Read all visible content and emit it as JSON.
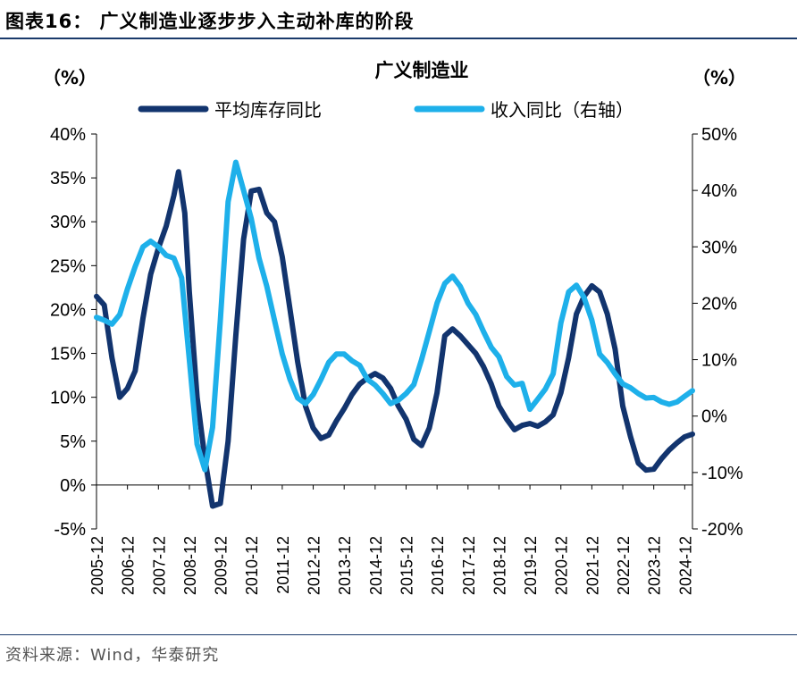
{
  "figure": {
    "title": "图表16：  广义制造业逐步步入主动补库的阶段",
    "source": "资料来源：Wind，华泰研究"
  },
  "chart_data": {
    "type": "line",
    "title": "广义制造业",
    "ylabel_left": "（%）",
    "ylabel_right": "（%）",
    "ylim_left": [
      -5,
      40
    ],
    "ylim_right": [
      -20,
      50
    ],
    "yticks_left": [
      "-5%",
      "0%",
      "5%",
      "10%",
      "15%",
      "20%",
      "25%",
      "30%",
      "35%",
      "40%"
    ],
    "yticks_right": [
      "-20%",
      "-10%",
      "0%",
      "10%",
      "20%",
      "30%",
      "40%",
      "50%"
    ],
    "x_categories": [
      "2005-12",
      "2006-12",
      "2007-12",
      "2008-12",
      "2009-12",
      "2010-12",
      "2011-12",
      "2012-12",
      "2013-12",
      "2014-12",
      "2015-12",
      "2016-12",
      "2017-12",
      "2018-12",
      "2019-12",
      "2020-12",
      "2021-12",
      "2022-12",
      "2023-12",
      "2024-12"
    ],
    "x_range": [
      2005.95,
      2025.2
    ],
    "colors": {
      "inventory": "#12346e",
      "revenue": "#1eb0ea"
    },
    "series": [
      {
        "name": "平均库存同比",
        "axis": "left",
        "x": [
          2005.95,
          2006.2,
          2006.45,
          2006.7,
          2006.95,
          2007.2,
          2007.45,
          2007.7,
          2007.95,
          2008.2,
          2008.45,
          2008.6,
          2008.8,
          2008.95,
          2009.2,
          2009.45,
          2009.7,
          2009.95,
          2010.2,
          2010.45,
          2010.7,
          2010.95,
          2011.2,
          2011.45,
          2011.7,
          2011.95,
          2012.2,
          2012.45,
          2012.7,
          2012.95,
          2013.2,
          2013.45,
          2013.7,
          2013.95,
          2014.2,
          2014.45,
          2014.7,
          2014.95,
          2015.2,
          2015.45,
          2015.7,
          2015.95,
          2016.2,
          2016.45,
          2016.7,
          2016.95,
          2017.2,
          2017.45,
          2017.7,
          2017.95,
          2018.2,
          2018.45,
          2018.7,
          2018.95,
          2019.2,
          2019.45,
          2019.7,
          2019.95,
          2020.2,
          2020.45,
          2020.7,
          2020.95,
          2021.2,
          2021.45,
          2021.7,
          2021.95,
          2022.2,
          2022.45,
          2022.7,
          2022.95,
          2023.2,
          2023.45,
          2023.7,
          2023.95,
          2024.2,
          2024.45,
          2024.7,
          2024.95,
          2025.2
        ],
        "values": [
          21.5,
          20.5,
          14.5,
          10,
          11,
          13,
          19,
          24,
          27,
          29.5,
          33,
          35.7,
          31,
          22,
          10,
          3,
          -2.4,
          -2.1,
          5,
          17,
          28,
          33.5,
          33.7,
          31,
          30,
          26,
          20,
          14,
          9,
          6.5,
          5.3,
          5.7,
          7.3,
          8.7,
          10.3,
          11.5,
          12.2,
          12.7,
          12.2,
          11,
          9,
          7.5,
          5.2,
          4.5,
          6.5,
          10.5,
          17,
          17.8,
          17,
          16,
          15,
          13.5,
          11.5,
          9,
          7.5,
          6.3,
          6.8,
          7,
          6.7,
          7.2,
          8,
          10.5,
          14.5,
          19.5,
          21.5,
          22.7,
          22,
          19.5,
          15.5,
          9,
          5.5,
          2.5,
          1.7,
          1.8,
          3,
          4,
          4.8,
          5.5,
          5.8
        ]
      },
      {
        "name": "收入同比（右轴）",
        "axis": "right",
        "x": [
          2005.95,
          2006.2,
          2006.45,
          2006.7,
          2006.95,
          2007.2,
          2007.45,
          2007.7,
          2007.95,
          2008.2,
          2008.45,
          2008.7,
          2008.95,
          2009.2,
          2009.45,
          2009.7,
          2009.95,
          2010.2,
          2010.45,
          2010.7,
          2010.95,
          2011.2,
          2011.45,
          2011.7,
          2011.95,
          2012.2,
          2012.45,
          2012.7,
          2012.95,
          2013.2,
          2013.45,
          2013.7,
          2013.95,
          2014.2,
          2014.45,
          2014.7,
          2014.95,
          2015.2,
          2015.45,
          2015.7,
          2015.95,
          2016.2,
          2016.45,
          2016.7,
          2016.95,
          2017.2,
          2017.45,
          2017.7,
          2017.95,
          2018.2,
          2018.45,
          2018.7,
          2018.95,
          2019.2,
          2019.45,
          2019.7,
          2019.95,
          2020.2,
          2020.45,
          2020.7,
          2020.95,
          2021.2,
          2021.45,
          2021.7,
          2021.95,
          2022.2,
          2022.45,
          2022.7,
          2022.95,
          2023.2,
          2023.45,
          2023.7,
          2023.95,
          2024.2,
          2024.45,
          2024.7,
          2024.95,
          2025.2
        ],
        "values": [
          17.5,
          17,
          16.3,
          18,
          22.5,
          26.5,
          30,
          31,
          30,
          28.5,
          28,
          24.5,
          10,
          -5,
          -9.5,
          -2,
          17,
          38,
          45,
          40,
          35,
          28,
          23,
          17,
          11,
          6.5,
          3.2,
          2.2,
          3.8,
          6.5,
          9.5,
          11,
          11,
          9.8,
          9,
          6.5,
          5.5,
          4,
          2.2,
          2.8,
          4,
          5.6,
          10,
          15,
          20,
          23.5,
          24.8,
          23,
          20,
          18,
          15,
          12.2,
          10.5,
          7,
          5.5,
          5.8,
          1.2,
          3,
          4.8,
          7.5,
          16.5,
          22,
          23.2,
          21,
          17,
          11,
          9.5,
          7.5,
          5.7,
          5,
          4,
          3.2,
          3.3,
          2.5,
          2.1,
          2.5,
          3.5,
          4.5
        ]
      }
    ]
  }
}
